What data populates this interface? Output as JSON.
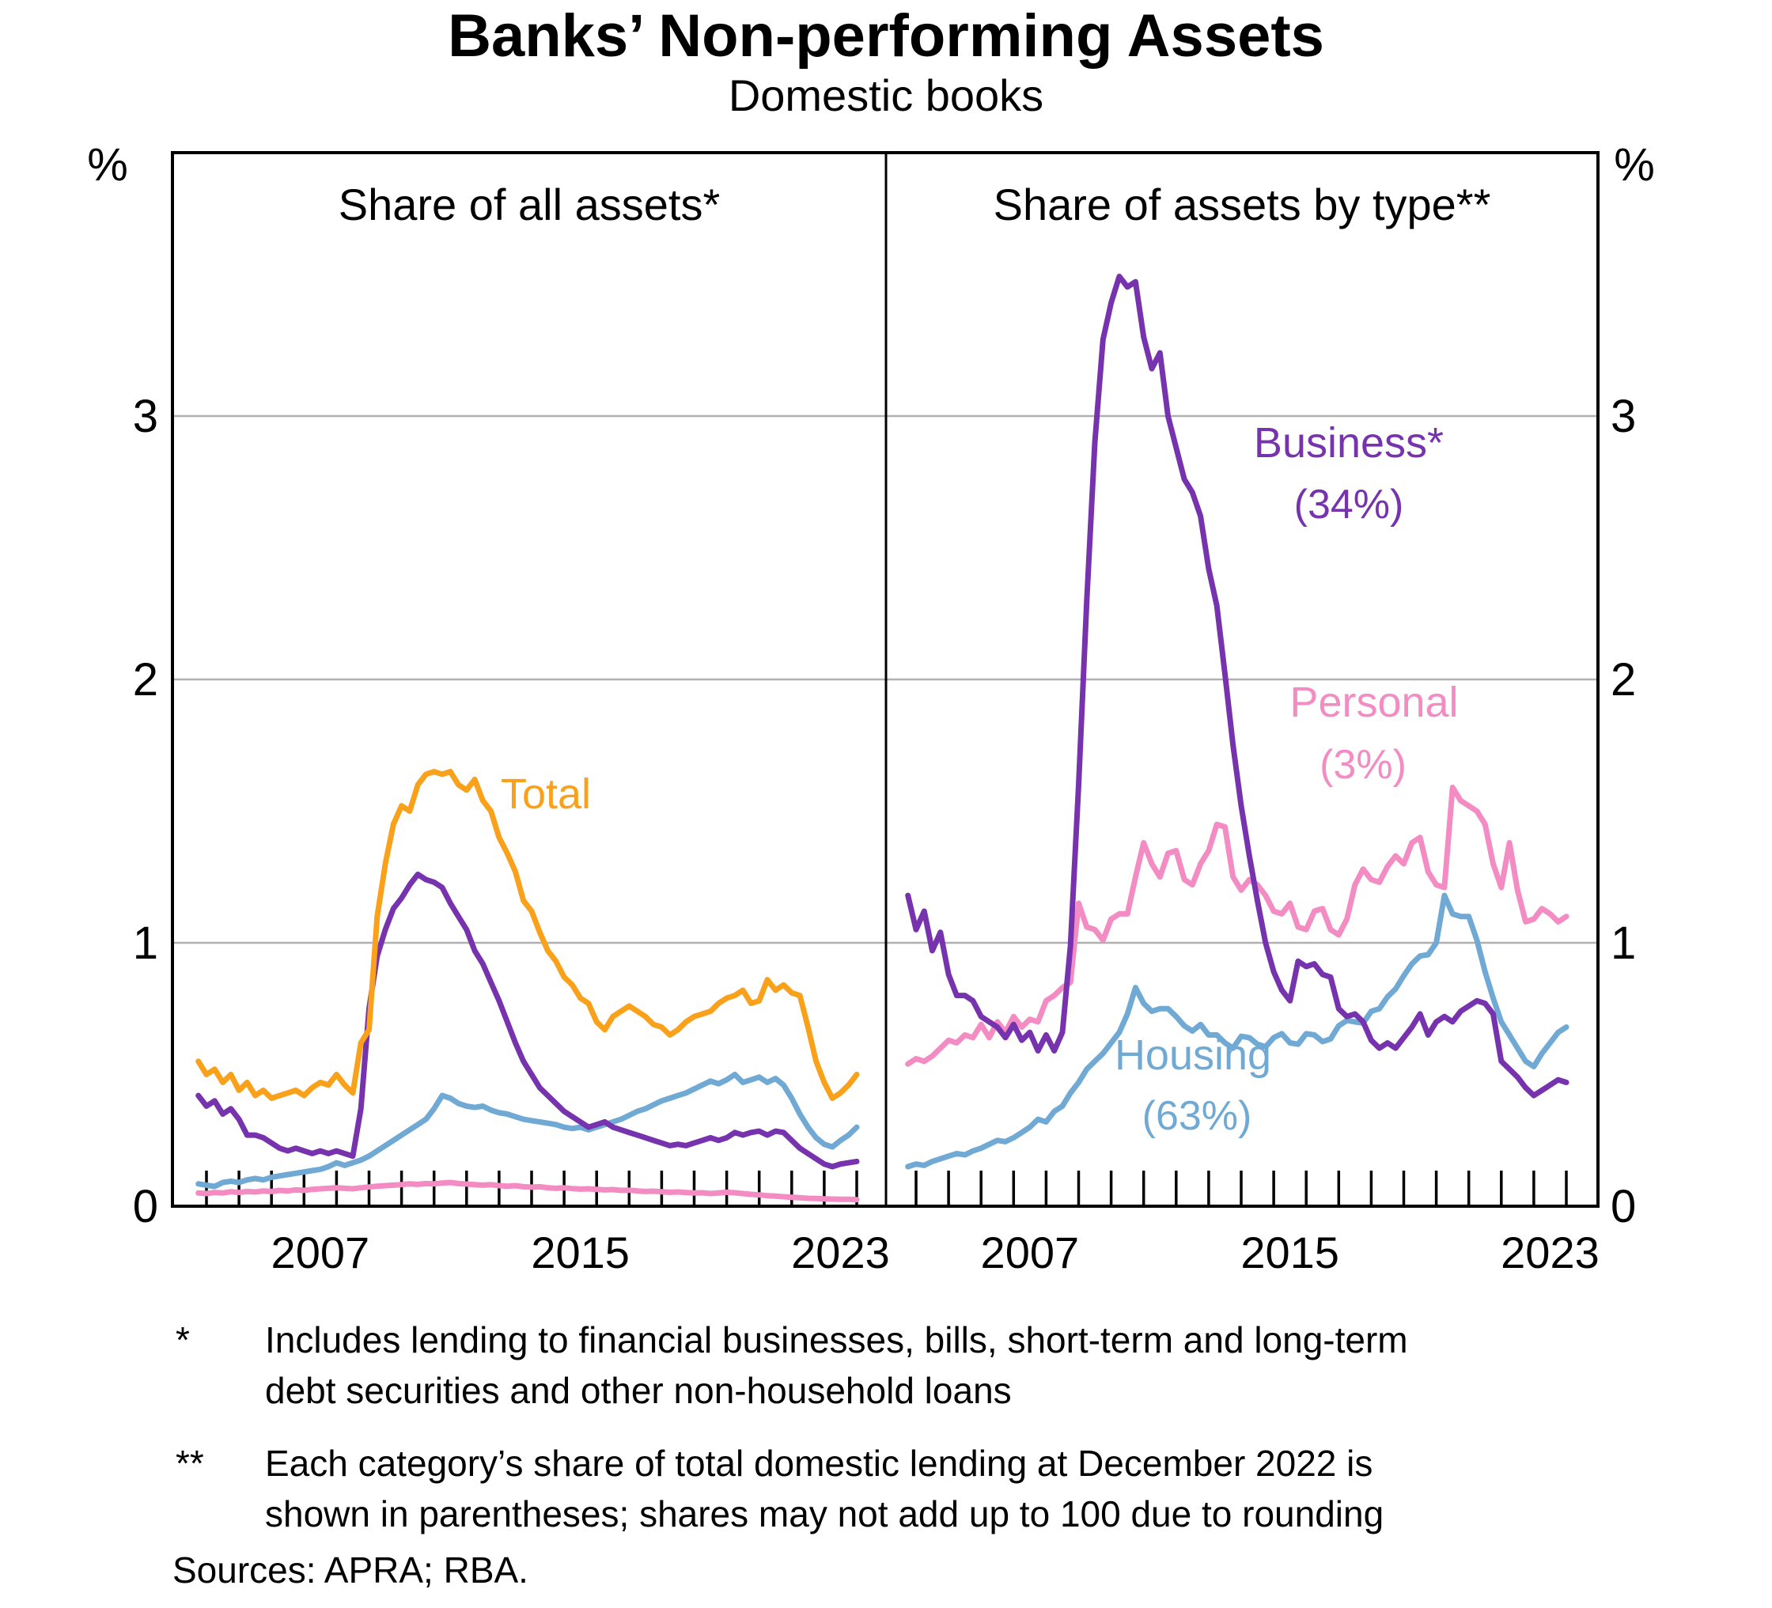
{
  "header": {
    "title": "Banks’ Non-performing Assets",
    "subtitle": "Domestic books"
  },
  "footnotes": [
    {
      "marker": "*",
      "lines": [
        "Includes lending to financial businesses, bills, short-term and long-term",
        "debt securities and other non-household loans"
      ]
    },
    {
      "marker": "**",
      "lines": [
        "Each category’s share of total domestic lending at December 2022 is",
        "shown in parentheses; shares may not add up to 100 due to rounding"
      ]
    }
  ],
  "sources": "Sources: APRA; RBA.",
  "colors": {
    "total": "#F9A11B",
    "business": "#7633AD",
    "housing": "#70A9D4",
    "personal": "#F28CC3",
    "grid": "#B0B0B0",
    "frame": "#000000"
  },
  "chart_data": {
    "type": "line",
    "unit": "%",
    "ylim": [
      0,
      4
    ],
    "yticks": [
      0,
      1,
      2,
      3
    ],
    "grid": "horizontal gridlines at 1, 2, 3",
    "x_start": 2003.75,
    "x_step": 0.25,
    "x_end": 2024.0,
    "x_axis_ticks": "yearly from 2004 to 2024",
    "xtick_labels": [
      "2007",
      "2015",
      "2023"
    ],
    "panels": [
      {
        "title": "Share of all assets*",
        "series": [
          {
            "name": "Personal",
            "color_key": "personal",
            "label": null,
            "share": null,
            "values": [
              0.05,
              0.048,
              0.052,
              0.05,
              0.055,
              0.052,
              0.056,
              0.054,
              0.058,
              0.056,
              0.06,
              0.058,
              0.062,
              0.06,
              0.064,
              0.066,
              0.068,
              0.07,
              0.068,
              0.066,
              0.07,
              0.073,
              0.076,
              0.078,
              0.08,
              0.082,
              0.085,
              0.083,
              0.086,
              0.085,
              0.088,
              0.09,
              0.086,
              0.084,
              0.082,
              0.08,
              0.082,
              0.078,
              0.076,
              0.078,
              0.074,
              0.072,
              0.074,
              0.07,
              0.068,
              0.07,
              0.067,
              0.065,
              0.066,
              0.064,
              0.062,
              0.063,
              0.06,
              0.061,
              0.058,
              0.056,
              0.057,
              0.055,
              0.053,
              0.054,
              0.052,
              0.05,
              0.051,
              0.048,
              0.05,
              0.053,
              0.051,
              0.048,
              0.045,
              0.043,
              0.04,
              0.038,
              0.036,
              0.034,
              0.032,
              0.03,
              0.029,
              0.028,
              0.027,
              0.026,
              0.026,
              0.025
            ]
          },
          {
            "name": "Housing",
            "color_key": "housing",
            "label": null,
            "share": null,
            "values": [
              0.085,
              0.08,
              0.075,
              0.09,
              0.095,
              0.09,
              0.1,
              0.105,
              0.1,
              0.11,
              0.115,
              0.12,
              0.125,
              0.13,
              0.135,
              0.14,
              0.15,
              0.165,
              0.155,
              0.165,
              0.175,
              0.19,
              0.21,
              0.23,
              0.25,
              0.27,
              0.29,
              0.31,
              0.33,
              0.37,
              0.42,
              0.41,
              0.39,
              0.38,
              0.375,
              0.38,
              0.365,
              0.355,
              0.35,
              0.34,
              0.33,
              0.325,
              0.32,
              0.315,
              0.31,
              0.3,
              0.295,
              0.3,
              0.29,
              0.3,
              0.31,
              0.32,
              0.33,
              0.345,
              0.36,
              0.37,
              0.385,
              0.4,
              0.41,
              0.42,
              0.43,
              0.445,
              0.46,
              0.475,
              0.465,
              0.48,
              0.5,
              0.47,
              0.48,
              0.49,
              0.47,
              0.485,
              0.46,
              0.41,
              0.35,
              0.3,
              0.26,
              0.235,
              0.225,
              0.25,
              0.27,
              0.3
            ]
          },
          {
            "name": "Business",
            "color_key": "business",
            "label": null,
            "share": null,
            "values": [
              0.42,
              0.38,
              0.4,
              0.35,
              0.37,
              0.33,
              0.27,
              0.27,
              0.26,
              0.24,
              0.22,
              0.21,
              0.22,
              0.21,
              0.2,
              0.21,
              0.2,
              0.21,
              0.2,
              0.19,
              0.37,
              0.75,
              0.95,
              1.05,
              1.13,
              1.17,
              1.22,
              1.26,
              1.24,
              1.23,
              1.21,
              1.15,
              1.1,
              1.05,
              0.97,
              0.92,
              0.85,
              0.78,
              0.7,
              0.62,
              0.55,
              0.5,
              0.45,
              0.42,
              0.39,
              0.36,
              0.34,
              0.32,
              0.3,
              0.31,
              0.32,
              0.3,
              0.29,
              0.28,
              0.27,
              0.26,
              0.25,
              0.24,
              0.23,
              0.235,
              0.23,
              0.24,
              0.25,
              0.26,
              0.25,
              0.26,
              0.28,
              0.27,
              0.28,
              0.285,
              0.27,
              0.285,
              0.28,
              0.25,
              0.22,
              0.2,
              0.18,
              0.16,
              0.15,
              0.16,
              0.165,
              0.17
            ]
          },
          {
            "name": "Total",
            "color_key": "total",
            "label": "Total",
            "share": null,
            "values": [
              0.55,
              0.5,
              0.52,
              0.47,
              0.5,
              0.44,
              0.47,
              0.42,
              0.44,
              0.41,
              0.42,
              0.43,
              0.44,
              0.42,
              0.45,
              0.47,
              0.46,
              0.5,
              0.46,
              0.43,
              0.62,
              0.67,
              1.1,
              1.3,
              1.45,
              1.52,
              1.5,
              1.6,
              1.64,
              1.65,
              1.64,
              1.65,
              1.6,
              1.58,
              1.62,
              1.54,
              1.5,
              1.4,
              1.34,
              1.27,
              1.16,
              1.12,
              1.04,
              0.97,
              0.93,
              0.87,
              0.84,
              0.79,
              0.77,
              0.7,
              0.67,
              0.72,
              0.74,
              0.76,
              0.74,
              0.72,
              0.69,
              0.68,
              0.65,
              0.67,
              0.7,
              0.72,
              0.73,
              0.74,
              0.77,
              0.79,
              0.8,
              0.82,
              0.77,
              0.78,
              0.86,
              0.82,
              0.84,
              0.81,
              0.8,
              0.68,
              0.55,
              0.47,
              0.41,
              0.43,
              0.46,
              0.5
            ]
          }
        ]
      },
      {
        "title": "Share of assets by type**",
        "series": [
          {
            "name": "Personal",
            "color_key": "personal",
            "label": "Personal",
            "share": "(3%)",
            "values": [
              0.54,
              0.56,
              0.55,
              0.57,
              0.6,
              0.63,
              0.62,
              0.65,
              0.64,
              0.69,
              0.64,
              0.7,
              0.66,
              0.72,
              0.68,
              0.71,
              0.7,
              0.78,
              0.8,
              0.83,
              0.85,
              1.15,
              1.06,
              1.05,
              1.01,
              1.09,
              1.11,
              1.11,
              1.25,
              1.38,
              1.3,
              1.25,
              1.34,
              1.35,
              1.24,
              1.22,
              1.3,
              1.35,
              1.45,
              1.44,
              1.25,
              1.2,
              1.24,
              1.22,
              1.18,
              1.12,
              1.11,
              1.15,
              1.06,
              1.05,
              1.12,
              1.13,
              1.05,
              1.03,
              1.09,
              1.22,
              1.28,
              1.24,
              1.23,
              1.29,
              1.33,
              1.3,
              1.38,
              1.4,
              1.27,
              1.22,
              1.21,
              1.59,
              1.54,
              1.52,
              1.5,
              1.45,
              1.3,
              1.21,
              1.38,
              1.2,
              1.08,
              1.09,
              1.13,
              1.11,
              1.08,
              1.1
            ]
          },
          {
            "name": "Housing",
            "color_key": "housing",
            "label": "Housing",
            "share": "(63%)",
            "values": [
              0.15,
              0.16,
              0.155,
              0.17,
              0.18,
              0.19,
              0.2,
              0.195,
              0.21,
              0.22,
              0.235,
              0.25,
              0.245,
              0.26,
              0.28,
              0.3,
              0.33,
              0.32,
              0.36,
              0.38,
              0.43,
              0.47,
              0.52,
              0.55,
              0.58,
              0.62,
              0.66,
              0.73,
              0.83,
              0.77,
              0.74,
              0.75,
              0.75,
              0.72,
              0.685,
              0.665,
              0.69,
              0.65,
              0.65,
              0.62,
              0.6,
              0.645,
              0.64,
              0.615,
              0.605,
              0.64,
              0.655,
              0.62,
              0.615,
              0.655,
              0.65,
              0.625,
              0.635,
              0.685,
              0.705,
              0.7,
              0.695,
              0.74,
              0.75,
              0.795,
              0.825,
              0.875,
              0.92,
              0.95,
              0.955,
              1.0,
              1.18,
              1.11,
              1.1,
              1.1,
              1.01,
              0.89,
              0.79,
              0.7,
              0.65,
              0.6,
              0.55,
              0.53,
              0.58,
              0.62,
              0.66,
              0.68
            ]
          },
          {
            "name": "Business*",
            "color_key": "business",
            "label": "Business*",
            "share": "(34%)",
            "values": [
              1.18,
              1.05,
              1.12,
              0.97,
              1.04,
              0.88,
              0.8,
              0.8,
              0.78,
              0.72,
              0.7,
              0.68,
              0.64,
              0.69,
              0.63,
              0.66,
              0.59,
              0.65,
              0.59,
              0.66,
              0.99,
              1.6,
              2.3,
              2.9,
              3.29,
              3.43,
              3.53,
              3.49,
              3.51,
              3.3,
              3.18,
              3.24,
              3.0,
              2.88,
              2.76,
              2.71,
              2.62,
              2.42,
              2.28,
              2.02,
              1.75,
              1.52,
              1.33,
              1.16,
              1.0,
              0.89,
              0.82,
              0.78,
              0.93,
              0.91,
              0.92,
              0.88,
              0.87,
              0.75,
              0.72,
              0.73,
              0.7,
              0.63,
              0.6,
              0.62,
              0.6,
              0.64,
              0.68,
              0.73,
              0.65,
              0.7,
              0.72,
              0.7,
              0.74,
              0.76,
              0.78,
              0.77,
              0.73,
              0.55,
              0.52,
              0.49,
              0.45,
              0.42,
              0.44,
              0.46,
              0.48,
              0.47
            ]
          }
        ]
      }
    ]
  }
}
